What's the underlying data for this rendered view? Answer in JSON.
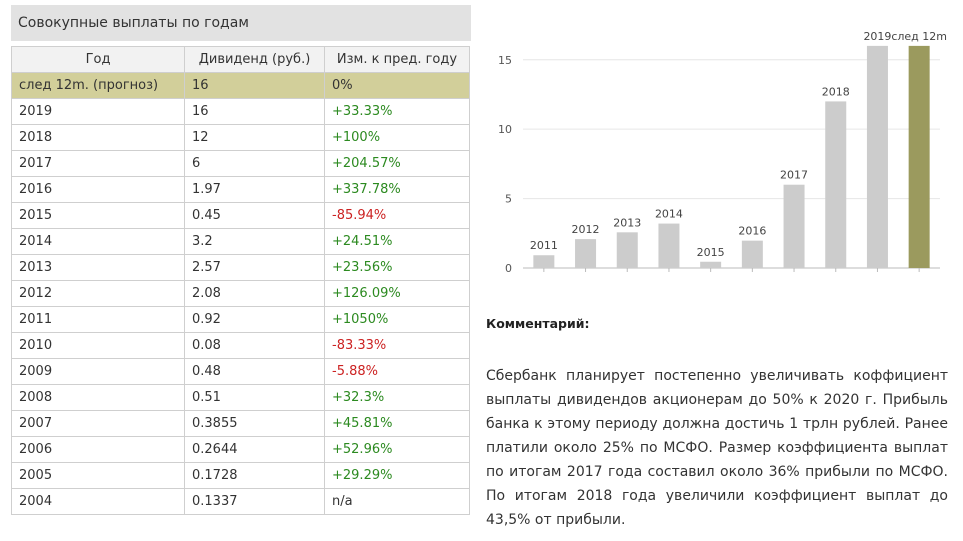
{
  "title": "Совокупные выплаты по годам",
  "table": {
    "headers": [
      "Год",
      "Дивиденд (руб.)",
      "Изм. к пред. году"
    ],
    "rows": [
      {
        "year": "след 12m. (прогноз)",
        "dividend": "16",
        "change": "0%",
        "trend": "neutral"
      },
      {
        "year": "2019",
        "dividend": "16",
        "change": "+33.33%",
        "trend": "up"
      },
      {
        "year": "2018",
        "dividend": "12",
        "change": "+100%",
        "trend": "up"
      },
      {
        "year": "2017",
        "dividend": "6",
        "change": "+204.57%",
        "trend": "up"
      },
      {
        "year": "2016",
        "dividend": "1.97",
        "change": "+337.78%",
        "trend": "up"
      },
      {
        "year": "2015",
        "dividend": "0.45",
        "change": "-85.94%",
        "trend": "down"
      },
      {
        "year": "2014",
        "dividend": "3.2",
        "change": "+24.51%",
        "trend": "up"
      },
      {
        "year": "2013",
        "dividend": "2.57",
        "change": "+23.56%",
        "trend": "up"
      },
      {
        "year": "2012",
        "dividend": "2.08",
        "change": "+126.09%",
        "trend": "up"
      },
      {
        "year": "2011",
        "dividend": "0.92",
        "change": "+1050%",
        "trend": "up"
      },
      {
        "year": "2010",
        "dividend": "0.08",
        "change": "-83.33%",
        "trend": "down"
      },
      {
        "year": "2009",
        "dividend": "0.48",
        "change": "-5.88%",
        "trend": "down"
      },
      {
        "year": "2008",
        "dividend": "0.51",
        "change": "+32.3%",
        "trend": "up"
      },
      {
        "year": "2007",
        "dividend": "0.3855",
        "change": "+45.81%",
        "trend": "up"
      },
      {
        "year": "2006",
        "dividend": "0.2644",
        "change": "+52.96%",
        "trend": "up"
      },
      {
        "year": "2005",
        "dividend": "0.1728",
        "change": "+29.29%",
        "trend": "up"
      },
      {
        "year": "2004",
        "dividend": "0.1337",
        "change": "n/a",
        "trend": "neutral"
      }
    ]
  },
  "colors": {
    "highlight_row": "#d2cf9a",
    "positive": "#2c8a20",
    "negative": "#cc2222",
    "bar": "#cccccc",
    "bar_forecast": "#9b9a5e"
  },
  "chart_data": {
    "type": "bar",
    "categories": [
      "2011",
      "2012",
      "2013",
      "2014",
      "2015",
      "2016",
      "2017",
      "2018",
      "2019",
      "след 12m"
    ],
    "values": [
      0.92,
      2.08,
      2.57,
      3.2,
      0.45,
      1.97,
      6,
      12,
      16,
      16
    ],
    "y_ticks": [
      "0",
      "5",
      "10",
      "15"
    ],
    "ylim": [
      0,
      17
    ],
    "grid": true,
    "title": "",
    "xlabel": "",
    "ylabel": ""
  },
  "comment": {
    "title": "Комментарий:",
    "text": "Сбербанк планирует постепенно увеличивать коффициент выплаты дивидендов акционерам до 50% к 2020 г. Прибыль банка к этому периоду должна достичь 1 трлн рублей. Ранее платили около 25% по МСФО. Размер коэффициента выплат по итогам 2017 года составил около 36% прибыли по МСФО. По итогам 2018 года увеличили коэффициент выплат до 43,5% от прибыли."
  }
}
